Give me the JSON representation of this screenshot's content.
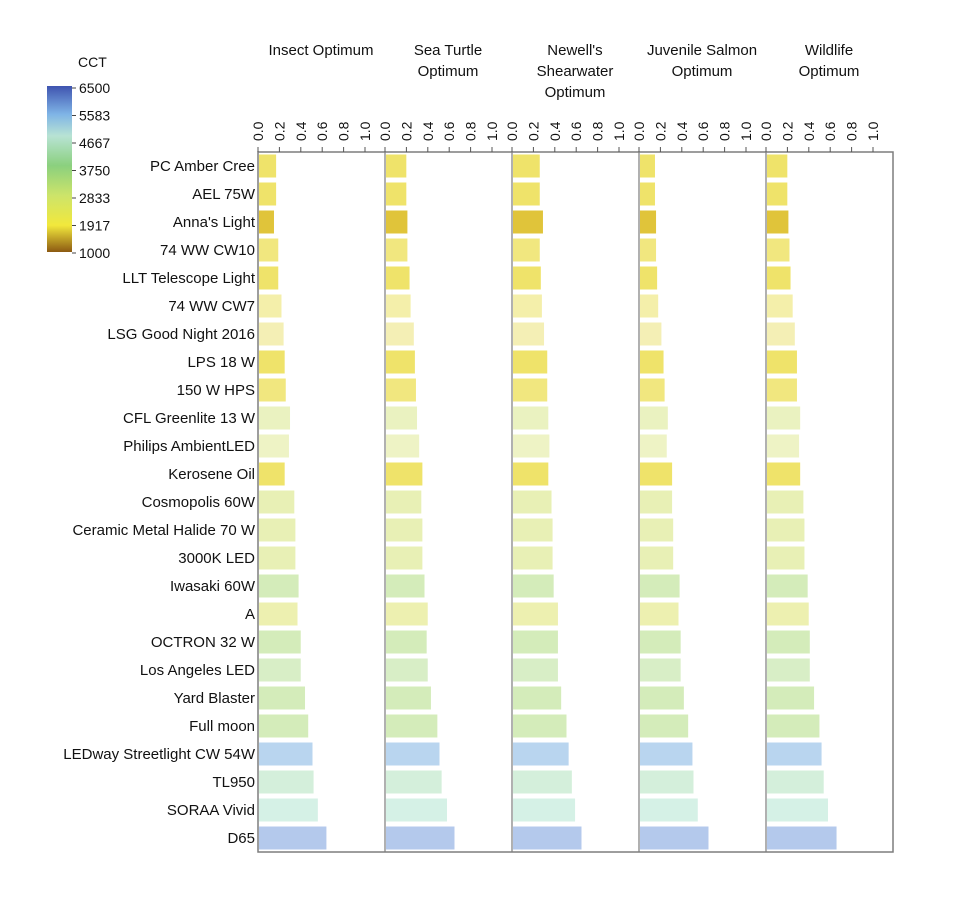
{
  "chart_data": {
    "type": "bar",
    "orientation": "horizontal",
    "colorbar": {
      "title": "CCT",
      "ticks": [
        "6500",
        "5583",
        "4667",
        "3750",
        "2833",
        "1917",
        "1000"
      ]
    },
    "panel_ticks": [
      "0.0",
      "0.2",
      "0.4",
      "0.6",
      "0.8",
      "1.0"
    ],
    "xlim": [
      0,
      1.0
    ],
    "categories": [
      "PC Amber Cree",
      "AEL 75W",
      "Anna's Light",
      "74 WW CW10",
      "LLT Telescope Light",
      "74 WW CW7",
      "LSG Good Night 2016",
      "LPS 18 W",
      "150 W HPS",
      "CFL Greenlite 13 W",
      "Philips AmbientLED",
      "Kerosene Oil",
      "Cosmopolis 60W",
      "Ceramic Metal Halide 70 W",
      "3000K LED",
      "Iwasaki 60W",
      "A",
      "OCTRON 32 W",
      "Los Angeles LED",
      "Yard Blaster",
      "Full moon",
      "LEDway Streetlight CW 54W",
      "TL950",
      "SORAA Vivid",
      "D65"
    ],
    "bar_colors": [
      "#efe36a",
      "#efe36a",
      "#e0c43a",
      "#f1e77f",
      "#efe36a",
      "#f4efaa",
      "#f4efb5",
      "#efe36a",
      "#f1e77f",
      "#eaf2c0",
      "#eef3c5",
      "#efe36a",
      "#e8f0b5",
      "#e8f0b5",
      "#e8f0b5",
      "#d4ecba",
      "#edf0b0",
      "#d4ecba",
      "#d8eec6",
      "#d4ecba",
      "#d4ecba",
      "#b9d5ef",
      "#d4efdb",
      "#d5f1e6",
      "#b4c9ec"
    ],
    "series": [
      {
        "name": "Insect Optimum",
        "values": [
          0.16,
          0.16,
          0.14,
          0.18,
          0.18,
          0.21,
          0.23,
          0.24,
          0.25,
          0.29,
          0.28,
          0.24,
          0.33,
          0.34,
          0.34,
          0.37,
          0.36,
          0.39,
          0.39,
          0.43,
          0.46,
          0.5,
          0.51,
          0.55,
          0.63
        ]
      },
      {
        "name": "Sea Turtle\nOptimum",
        "values": [
          0.19,
          0.19,
          0.2,
          0.2,
          0.22,
          0.23,
          0.26,
          0.27,
          0.28,
          0.29,
          0.31,
          0.34,
          0.33,
          0.34,
          0.34,
          0.36,
          0.39,
          0.38,
          0.39,
          0.42,
          0.48,
          0.5,
          0.52,
          0.57,
          0.64
        ]
      },
      {
        "name": "Newell's\nShearwater\nOptimum",
        "values": [
          0.25,
          0.25,
          0.28,
          0.25,
          0.26,
          0.27,
          0.29,
          0.32,
          0.32,
          0.33,
          0.34,
          0.33,
          0.36,
          0.37,
          0.37,
          0.38,
          0.42,
          0.42,
          0.42,
          0.45,
          0.5,
          0.52,
          0.55,
          0.58,
          0.64
        ]
      },
      {
        "name": "Juvenile Salmon\nOptimum",
        "values": [
          0.14,
          0.14,
          0.15,
          0.15,
          0.16,
          0.17,
          0.2,
          0.22,
          0.23,
          0.26,
          0.25,
          0.3,
          0.3,
          0.31,
          0.31,
          0.37,
          0.36,
          0.38,
          0.38,
          0.41,
          0.45,
          0.49,
          0.5,
          0.54,
          0.64
        ]
      },
      {
        "name": "Wildlife\nOptimum",
        "values": [
          0.19,
          0.19,
          0.2,
          0.21,
          0.22,
          0.24,
          0.26,
          0.28,
          0.28,
          0.31,
          0.3,
          0.31,
          0.34,
          0.35,
          0.35,
          0.38,
          0.39,
          0.4,
          0.4,
          0.44,
          0.49,
          0.51,
          0.53,
          0.57,
          0.65
        ]
      }
    ]
  }
}
